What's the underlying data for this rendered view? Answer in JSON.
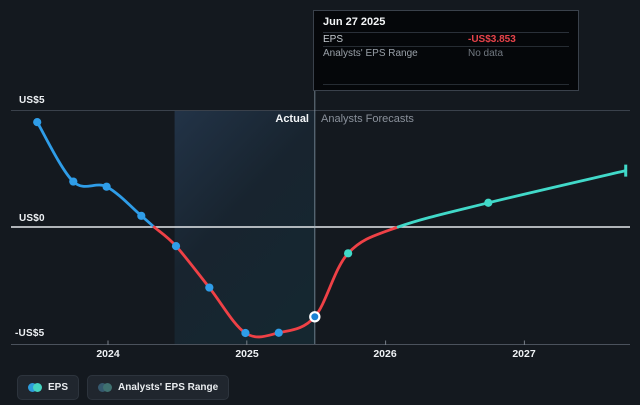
{
  "tooltip": {
    "date": "Jun 27 2025",
    "rows": [
      {
        "label": "EPS",
        "value": "-US$3.853",
        "value_color": "#e8434a"
      },
      {
        "label": "Analysts' EPS Range",
        "value": "No data",
        "value_color": "#717880"
      }
    ]
  },
  "annotations": {
    "actual": "Actual",
    "forecast": "Analysts Forecasts"
  },
  "legend": [
    {
      "label": "EPS",
      "colors": [
        "#2d9cdb",
        "#45d4c0"
      ]
    },
    {
      "label": "Analysts' EPS Range",
      "colors": [
        "#35596e",
        "#3f7170"
      ]
    }
  ],
  "chart_data": {
    "type": "line",
    "title": "EPS actual vs analysts forecasts",
    "unit": "US$",
    "y_ticks": [
      {
        "value": 5,
        "label": "US$5"
      },
      {
        "value": 0,
        "label": "US$0"
      },
      {
        "value": -5,
        "label": "-US$5"
      }
    ],
    "x_ticks": [
      {
        "value": 2024,
        "label": "2024"
      },
      {
        "value": 2025,
        "label": "2025"
      },
      {
        "value": 2026,
        "label": "2026"
      },
      {
        "value": 2027,
        "label": "2027"
      }
    ],
    "ylim": [
      -5.9,
      5.1
    ],
    "xlim": [
      2023.3,
      2027.85
    ],
    "grid": true,
    "legend_position": "bottom-left",
    "actual_end": 2025.49,
    "highlight_band": {
      "from": 2024.48,
      "to": 2025.49
    },
    "actual_color": "#2f9de8",
    "forecast_color": "#41d9c9",
    "negative_color": "#ef4146",
    "series": [
      {
        "name": "EPS",
        "kind": "actual",
        "points": [
          {
            "t": 2023.49,
            "v": 4.5
          },
          {
            "t": 2023.75,
            "v": 1.95
          },
          {
            "t": 2023.99,
            "v": 1.73
          },
          {
            "t": 2024.24,
            "v": 0.48
          },
          {
            "t": 2024.49,
            "v": -0.82
          },
          {
            "t": 2024.73,
            "v": -2.6
          },
          {
            "t": 2024.99,
            "v": -4.55
          },
          {
            "t": 2025.23,
            "v": -4.54
          },
          {
            "t": 2025.49,
            "v": -3.853,
            "highlight": true
          }
        ]
      },
      {
        "name": "Analysts Forecasts",
        "kind": "forecast",
        "points": [
          {
            "t": 2025.49,
            "v": -3.853,
            "marker": false
          },
          {
            "t": 2025.73,
            "v": -1.13
          },
          {
            "t": 2026.09,
            "v": 0.0,
            "marker": false
          },
          {
            "t": 2026.74,
            "v": 1.04
          },
          {
            "t": 2027.73,
            "v": 2.42,
            "endcap": true
          }
        ]
      }
    ],
    "highlight_point": {
      "t": 2025.49,
      "v": -3.853,
      "date": "Jun 27 2025"
    }
  }
}
